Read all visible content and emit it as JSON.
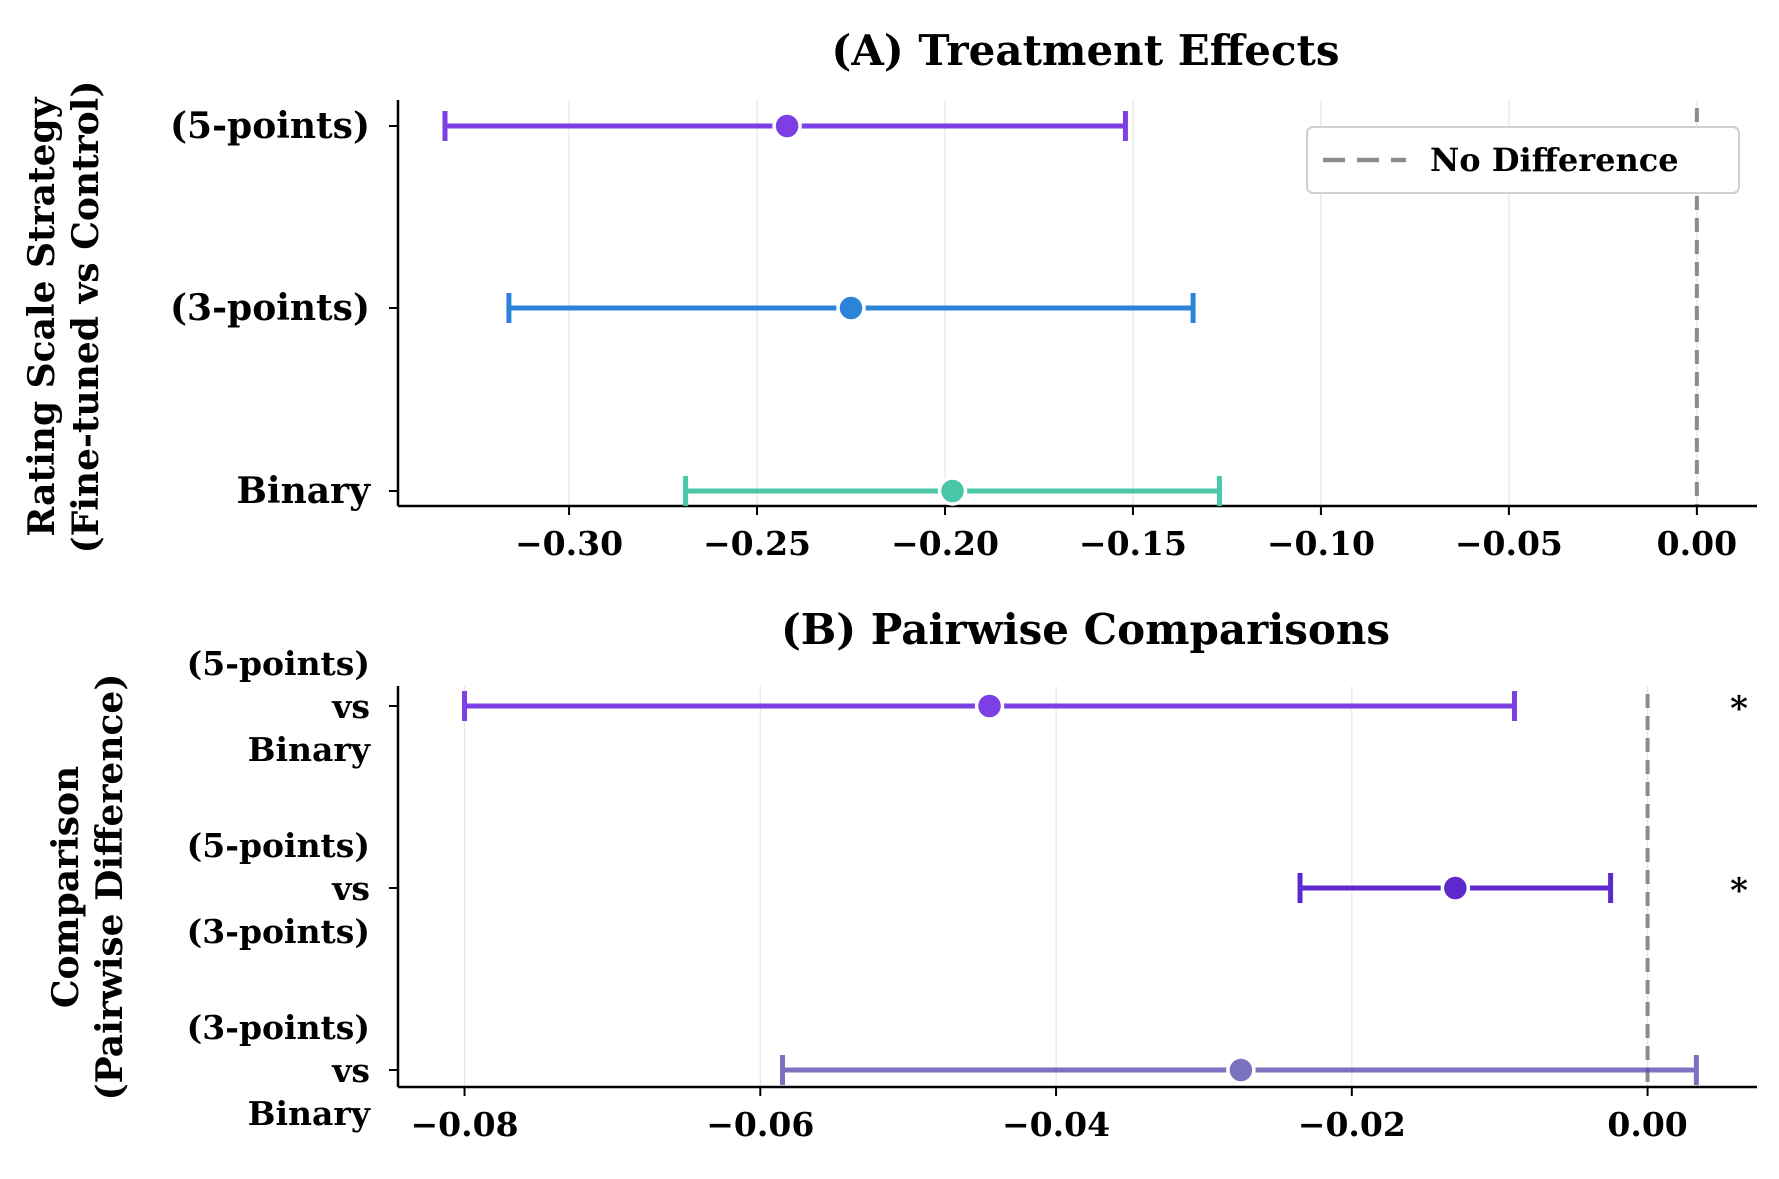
{
  "colors": {
    "background": "#ffffff",
    "axis": "#000000",
    "grid": "#e6e6e6",
    "reference_line": "#8c8c8c",
    "marker_edge": "#ffffff"
  },
  "chart_data": [
    {
      "type": "errorbar",
      "title": "(A) Treatment Effects",
      "ylabel_lines": [
        "Rating Scale Strategy",
        "(Fine-tuned vs Control)"
      ],
      "xlabel": "",
      "xlim": [
        -0.3455,
        0.016
      ],
      "xticks": [
        -0.3,
        -0.25,
        -0.2,
        -0.15,
        -0.1,
        -0.05,
        0.0
      ],
      "xtick_labels": [
        "−0.30",
        "−0.25",
        "−0.20",
        "−0.15",
        "−0.10",
        "−0.05",
        "0.00"
      ],
      "grid": "x",
      "reference_line": {
        "x": 0.0,
        "style": "dashed",
        "color": "#8c8c8c"
      },
      "legend": {
        "location": "top-right",
        "entries": [
          "No Difference"
        ]
      },
      "series": [
        {
          "name": "(5-points)",
          "label_lines": [
            "(5-points)"
          ],
          "estimate": -0.242,
          "ci_low": -0.333,
          "ci_high": -0.152,
          "color": "#7b3fe4",
          "alpha": 1.0,
          "significant": false
        },
        {
          "name": "(3-points)",
          "label_lines": [
            "(3-points)"
          ],
          "estimate": -0.225,
          "ci_low": -0.316,
          "ci_high": -0.134,
          "color": "#2b84d8",
          "alpha": 1.0,
          "significant": false
        },
        {
          "name": "Binary",
          "label_lines": [
            "Binary"
          ],
          "estimate": -0.198,
          "ci_low": -0.269,
          "ci_high": -0.127,
          "color": "#4ac6a8",
          "alpha": 1.0,
          "significant": false
        }
      ]
    },
    {
      "type": "errorbar",
      "title": "(B) Pairwise Comparisons",
      "ylabel_lines": [
        "Comparison",
        "(Pairwise Difference)"
      ],
      "xlabel": "",
      "xlim": [
        -0.0845,
        0.0074
      ],
      "xticks": [
        -0.08,
        -0.06,
        -0.04,
        -0.02,
        0.0
      ],
      "xtick_labels": [
        "−0.08",
        "−0.06",
        "−0.04",
        "−0.02",
        "0.00"
      ],
      "grid": "x",
      "reference_line": {
        "x": 0.0,
        "style": "dashed",
        "color": "#8c8c8c"
      },
      "series": [
        {
          "name": "(5-points) vs Binary",
          "label_lines": [
            "(5-points)",
            "vs",
            "Binary"
          ],
          "estimate": -0.0445,
          "ci_low": -0.08,
          "ci_high": -0.009,
          "color": "#7b3fe4",
          "alpha": 1.0,
          "significant": true,
          "marker": "*"
        },
        {
          "name": "(5-points) vs (3-points)",
          "label_lines": [
            "(5-points)",
            "vs",
            "(3-points)"
          ],
          "estimate": -0.013,
          "ci_low": -0.0235,
          "ci_high": -0.0025,
          "color": "#5d29cc",
          "alpha": 1.0,
          "significant": true,
          "marker": "*"
        },
        {
          "name": "(3-points) vs Binary",
          "label_lines": [
            "(3-points)",
            "vs",
            "Binary"
          ],
          "estimate": -0.0275,
          "ci_low": -0.0585,
          "ci_high": 0.0033,
          "color": "#5b4fb0",
          "alpha": 0.8,
          "significant": false,
          "marker": ""
        }
      ]
    }
  ]
}
